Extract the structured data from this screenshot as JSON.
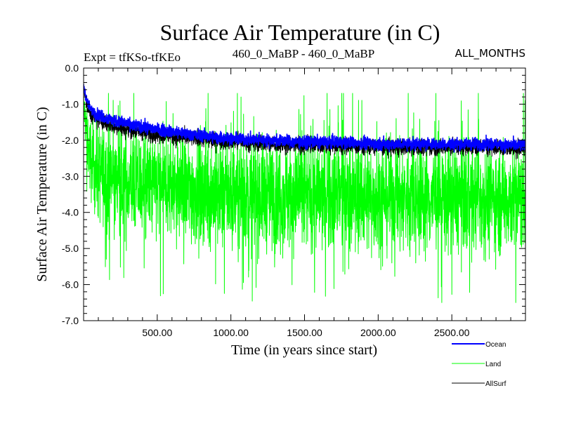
{
  "chart_data": {
    "type": "line",
    "title": "Surface Air Temperature (in C)",
    "subtitle_left": "Expt = tfKSo-tfKEo",
    "subtitle_center": "460_0_MaBP - 460_0_MaBP",
    "subtitle_right": "ALL_MONTHS",
    "xlabel": "Time (in years since start)",
    "ylabel": "Surface Air Temperature (in C)",
    "xlim": [
      0,
      3000
    ],
    "ylim": [
      -7.0,
      0.0
    ],
    "x_ticks": [
      500,
      1000,
      1500,
      2000,
      2500
    ],
    "x_tick_labels": [
      "500.00",
      "1000.00",
      "1500.00",
      "2000.00",
      "2500.00"
    ],
    "y_ticks": [
      0,
      -1,
      -2,
      -3,
      -4,
      -5,
      -6,
      -7
    ],
    "y_tick_labels": [
      "0.0",
      "-1.0",
      "-2.0",
      "-3.0",
      "-4.0",
      "-5.0",
      "-6.0",
      "-7.0"
    ],
    "legend_position": "bottom-right, outside plot",
    "series": [
      {
        "name": "Ocean",
        "color": "#0000ff",
        "x": [
          0,
          25,
          50,
          100,
          200,
          300,
          500,
          750,
          1000,
          1250,
          1500,
          1750,
          2000,
          2250,
          2500,
          2750,
          3000
        ],
        "mean": [
          -0.5,
          -0.95,
          -1.15,
          -1.3,
          -1.45,
          -1.55,
          -1.7,
          -1.85,
          -1.95,
          -2.0,
          -2.05,
          -2.05,
          -2.1,
          -2.1,
          -2.1,
          -2.1,
          -2.15
        ],
        "spread": [
          0.1,
          0.12,
          0.14,
          0.15,
          0.15,
          0.15,
          0.15,
          0.15,
          0.15,
          0.15,
          0.15,
          0.15,
          0.15,
          0.15,
          0.15,
          0.15,
          0.15
        ]
      },
      {
        "name": "Land",
        "color": "#00ff00",
        "x": [
          0,
          25,
          50,
          100,
          200,
          300,
          500,
          750,
          1000,
          1250,
          1500,
          1750,
          2000,
          2250,
          2500,
          2750,
          3000
        ],
        "mean": [
          -1.0,
          -2.0,
          -2.6,
          -2.9,
          -3.1,
          -3.2,
          -3.3,
          -3.4,
          -3.5,
          -3.5,
          -3.55,
          -3.55,
          -3.6,
          -3.6,
          -3.6,
          -3.6,
          -3.6
        ],
        "spread": [
          0.4,
          0.8,
          1.0,
          1.2,
          1.3,
          1.3,
          1.35,
          1.35,
          1.35,
          1.35,
          1.35,
          1.35,
          1.35,
          1.35,
          1.35,
          1.35,
          1.35
        ],
        "min_observed": -6.5,
        "max_observed": -0.7
      },
      {
        "name": "AllSurf",
        "color": "#000000",
        "x": [
          0,
          25,
          50,
          100,
          200,
          300,
          500,
          750,
          1000,
          1250,
          1500,
          1750,
          2000,
          2250,
          2500,
          2750,
          3000
        ],
        "mean": [
          -0.55,
          -1.1,
          -1.3,
          -1.45,
          -1.6,
          -1.7,
          -1.85,
          -1.95,
          -2.05,
          -2.1,
          -2.15,
          -2.15,
          -2.2,
          -2.2,
          -2.2,
          -2.2,
          -2.25
        ],
        "spread": [
          0.1,
          0.15,
          0.18,
          0.2,
          0.2,
          0.2,
          0.2,
          0.2,
          0.2,
          0.2,
          0.2,
          0.2,
          0.2,
          0.2,
          0.2,
          0.2,
          0.2
        ]
      }
    ]
  }
}
